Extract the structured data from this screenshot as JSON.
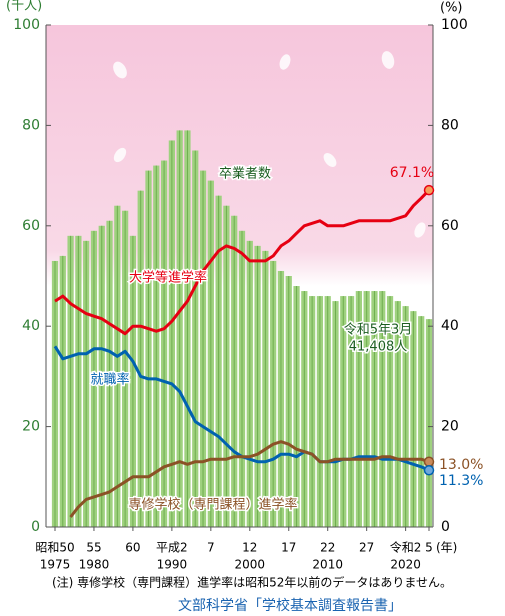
{
  "chart_data": {
    "type": "bar-line",
    "y_label": "(千人)",
    "y2_label": "(%)",
    "categories": [
      "昭和50",
      null,
      null,
      null,
      null,
      "55",
      null,
      null,
      null,
      null,
      "60",
      null,
      null,
      null,
      null,
      "平成2",
      null,
      null,
      null,
      null,
      "7",
      null,
      null,
      null,
      null,
      "12",
      null,
      null,
      null,
      null,
      "17",
      null,
      null,
      null,
      null,
      "22",
      null,
      null,
      null,
      null,
      "27",
      null,
      null,
      null,
      null,
      "令和2",
      null,
      null,
      "5"
    ],
    "categories_ad": [
      "1975",
      null,
      null,
      null,
      null,
      "1980",
      null,
      null,
      null,
      null,
      null,
      null,
      null,
      null,
      null,
      "1990",
      null,
      null,
      null,
      null,
      null,
      null,
      null,
      null,
      null,
      "2000",
      null,
      null,
      null,
      null,
      null,
      null,
      null,
      null,
      null,
      "2010",
      null,
      null,
      null,
      null,
      null,
      null,
      null,
      null,
      null,
      "2020",
      null,
      null,
      null
    ],
    "x_unit": "(年)",
    "ylim": [
      0,
      100
    ],
    "yticks": [
      0,
      20,
      40,
      60,
      80,
      100
    ],
    "y2lim": [
      0,
      100
    ],
    "y2ticks": [
      0,
      20,
      40,
      60,
      80,
      100
    ],
    "series": [
      {
        "name": "卒業者数",
        "type": "bar",
        "color": "#9fd17f",
        "values": [
          53,
          54,
          58,
          58,
          57,
          59,
          60,
          61,
          64,
          63,
          58,
          67,
          71,
          72,
          73,
          77,
          79,
          79,
          75,
          71,
          69,
          66,
          64,
          62,
          59,
          57,
          56,
          55,
          53,
          51,
          50,
          48,
          47,
          46,
          46,
          46,
          45,
          46,
          46,
          47,
          47,
          47,
          47,
          46,
          45,
          44,
          43,
          42,
          41.408
        ],
        "value_labels": [
          null,
          null,
          null,
          null,
          null,
          null,
          null,
          null,
          null,
          null,
          null,
          null,
          null,
          null,
          null,
          null,
          null,
          null,
          null,
          null,
          null,
          null,
          null,
          null,
          null,
          null,
          null,
          null,
          null,
          null,
          null,
          null,
          null,
          null,
          null,
          null,
          null,
          null,
          null,
          null,
          null,
          null,
          null,
          null,
          null,
          null,
          null,
          null,
          "41,408人"
        ],
        "annotation": "令和5年3月"
      },
      {
        "name": "大学等進学率",
        "type": "line",
        "axis": "y2",
        "color": "#e60012",
        "values": [
          45,
          46,
          44.5,
          43.5,
          42.5,
          42,
          41.5,
          40.5,
          39.5,
          38.5,
          40,
          40,
          39.5,
          39,
          39.5,
          41,
          43,
          45,
          48,
          51,
          53,
          55,
          56,
          55.5,
          54.5,
          53,
          53,
          53,
          54,
          56,
          57,
          58.5,
          60,
          60.5,
          61,
          60,
          60,
          60,
          60.5,
          61,
          61,
          61,
          61,
          61,
          61.5,
          62,
          64,
          65.5,
          67.1
        ],
        "value_labels": [
          null,
          null,
          null,
          null,
          null,
          null,
          null,
          null,
          null,
          null,
          null,
          null,
          null,
          null,
          null,
          null,
          null,
          null,
          null,
          null,
          null,
          null,
          null,
          null,
          null,
          null,
          null,
          null,
          null,
          null,
          null,
          null,
          null,
          null,
          null,
          null,
          null,
          null,
          null,
          null,
          null,
          null,
          null,
          null,
          null,
          null,
          null,
          null,
          "67.1%"
        ]
      },
      {
        "name": "就職率",
        "type": "line",
        "axis": "y2",
        "color": "#0062b0",
        "values": [
          36,
          33.5,
          34,
          34.5,
          34.5,
          35.5,
          35.5,
          35,
          34,
          35,
          33,
          30,
          29.5,
          29.5,
          29,
          28.5,
          27,
          24,
          21,
          20,
          19,
          18,
          16.5,
          15,
          14,
          13.5,
          13,
          13,
          13.5,
          14.5,
          14.5,
          14,
          15,
          14.5,
          13,
          13,
          13,
          13.5,
          13.5,
          14,
          14,
          14,
          13.5,
          13.5,
          13.5,
          13,
          12.5,
          12,
          11.3
        ],
        "value_labels": [
          null,
          null,
          null,
          null,
          null,
          null,
          null,
          null,
          null,
          null,
          null,
          null,
          null,
          null,
          null,
          null,
          null,
          null,
          null,
          null,
          null,
          null,
          null,
          null,
          null,
          null,
          null,
          null,
          null,
          null,
          null,
          null,
          null,
          null,
          null,
          null,
          null,
          null,
          null,
          null,
          null,
          null,
          null,
          null,
          null,
          null,
          null,
          null,
          "11.3%"
        ]
      },
      {
        "name": "専修学校（専門課程）進学率",
        "type": "line",
        "axis": "y2",
        "color": "#8b5226",
        "values": [
          null,
          null,
          2,
          4,
          5.5,
          6,
          6.5,
          7,
          8,
          9,
          10,
          10,
          10,
          11,
          12,
          12.5,
          13,
          12.5,
          13,
          13,
          13.5,
          13.5,
          13.5,
          14,
          14,
          14,
          14.5,
          15.5,
          16.5,
          17,
          16.5,
          15.5,
          15,
          14.5,
          13,
          13,
          13.5,
          13.5,
          13.5,
          13.5,
          13.5,
          13.5,
          14,
          14,
          13.5,
          13.5,
          13.5,
          13.5,
          13.0
        ],
        "value_labels": [
          null,
          null,
          null,
          null,
          null,
          null,
          null,
          null,
          null,
          null,
          null,
          null,
          null,
          null,
          null,
          null,
          null,
          null,
          null,
          null,
          null,
          null,
          null,
          null,
          null,
          null,
          null,
          null,
          null,
          null,
          null,
          null,
          null,
          null,
          null,
          null,
          null,
          null,
          null,
          null,
          null,
          null,
          null,
          null,
          null,
          null,
          null,
          null,
          "13.0%"
        ]
      }
    ],
    "note": "(注) 専修学校（専門課程）進学率は昭和52年以前のデータはありません。",
    "source": "文部科学省「学校基本調査報告書」"
  }
}
